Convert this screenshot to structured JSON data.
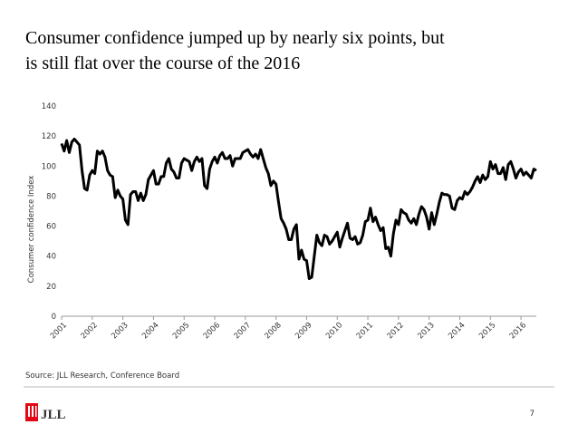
{
  "chart_data": {
    "type": "line",
    "title": "Consumer confidence jumped up by nearly six points, but is still flat over the course of the 2016",
    "y_label": "Consumer confidence Index",
    "categories": [
      "2001",
      null,
      null,
      null,
      null,
      null,
      null,
      null,
      null,
      null,
      null,
      null,
      "2002",
      null,
      null,
      null,
      null,
      null,
      null,
      null,
      null,
      null,
      null,
      null,
      "2003",
      null,
      null,
      null,
      null,
      null,
      null,
      null,
      null,
      null,
      null,
      null,
      "2004",
      null,
      null,
      null,
      null,
      null,
      null,
      null,
      null,
      null,
      null,
      null,
      "2005",
      null,
      null,
      null,
      null,
      null,
      null,
      null,
      null,
      null,
      null,
      null,
      "2006",
      null,
      null,
      null,
      null,
      null,
      null,
      null,
      null,
      null,
      null,
      null,
      "2007",
      null,
      null,
      null,
      null,
      null,
      null,
      null,
      null,
      null,
      null,
      null,
      "2008",
      null,
      null,
      null,
      null,
      null,
      null,
      null,
      null,
      null,
      null,
      null,
      "2009",
      null,
      null,
      null,
      null,
      null,
      null,
      null,
      null,
      null,
      null,
      null,
      "2010",
      null,
      null,
      null,
      null,
      null,
      null,
      null,
      null,
      null,
      null,
      null,
      "2011",
      null,
      null,
      null,
      null,
      null,
      null,
      null,
      null,
      null,
      null,
      null,
      "2012",
      null,
      null,
      null,
      null,
      null,
      null,
      null,
      null,
      null,
      null,
      null,
      "2013",
      null,
      null,
      null,
      null,
      null,
      null,
      null,
      null,
      null,
      null,
      null,
      "2014",
      null,
      null,
      null,
      null,
      null,
      null,
      null,
      null,
      null,
      null,
      null,
      "2015",
      null,
      null,
      null,
      null,
      null,
      null,
      null,
      null,
      null,
      null,
      null,
      "2016",
      null,
      null,
      null,
      null,
      null,
      null
    ],
    "values": [
      115,
      110,
      117,
      109,
      116,
      118,
      116,
      114,
      97,
      85,
      84,
      94,
      97,
      95,
      110,
      108,
      110,
      106,
      97,
      94,
      93,
      79,
      84,
      80,
      78,
      64,
      61,
      81,
      83,
      83,
      77,
      82,
      77,
      81,
      91,
      94,
      97,
      88,
      88,
      93,
      93,
      102,
      105,
      98,
      96,
      92,
      92,
      102,
      105,
      104,
      103,
      97,
      103,
      106,
      103,
      105,
      87,
      85,
      98,
      103,
      106,
      102,
      107,
      109,
      105,
      105,
      107,
      100,
      105,
      105,
      105,
      109,
      110,
      111,
      108,
      106,
      108,
      105,
      111,
      105,
      99,
      95,
      87,
      90,
      88,
      76,
      65,
      62,
      58,
      51,
      51,
      58,
      61,
      38,
      44,
      38,
      37,
      25,
      26,
      40,
      54,
      49,
      47,
      54,
      53,
      48,
      50,
      53,
      56,
      46,
      52,
      57,
      62,
      52,
      51,
      53,
      48,
      49,
      54,
      63,
      64,
      72,
      63,
      66,
      61,
      57,
      59,
      45,
      46,
      40,
      55,
      64,
      61,
      71,
      69,
      68,
      64,
      62,
      65,
      61,
      68,
      73,
      71,
      66,
      58,
      69,
      61,
      68,
      76,
      82,
      81,
      81,
      80,
      72,
      71,
      77,
      79,
      78,
      83,
      81,
      83,
      86,
      90,
      93,
      89,
      94,
      91,
      93,
      103,
      98,
      101,
      95,
      95,
      99,
      91,
      101,
      103,
      98,
      92,
      96,
      98,
      94,
      96,
      94,
      92,
      98,
      97
    ],
    "color": "#000000",
    "ylim": [
      0,
      140
    ],
    "yticks": [
      0,
      20,
      40,
      60,
      80,
      100,
      120,
      140
    ],
    "grid": false
  },
  "source": "Source: JLL Research, Conference Board",
  "logo": "JLL",
  "page_number": "7"
}
